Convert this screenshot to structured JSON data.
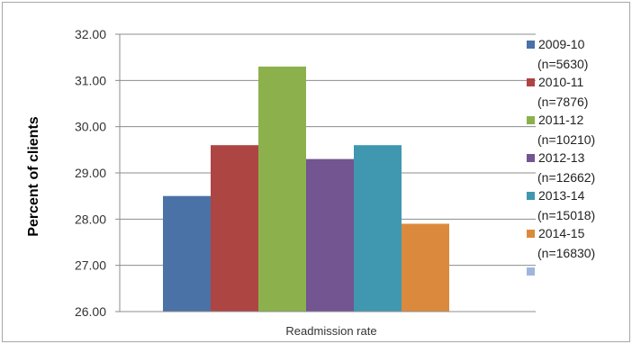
{
  "chart_data": {
    "type": "bar",
    "title": "",
    "xlabel": "Readmission rate",
    "ylabel": "Percent of clients",
    "ylim": [
      26.0,
      32.0
    ],
    "yticks": [
      "26.00",
      "27.00",
      "28.00",
      "29.00",
      "30.00",
      "31.00",
      "32.00"
    ],
    "categories": [
      "Readmission rate"
    ],
    "grid": true,
    "legend_position": "right",
    "series": [
      {
        "name": "2009-10 (n=5630)",
        "legend_lines": [
          "2009-10",
          "(n=5630)"
        ],
        "values": [
          28.5
        ],
        "color": "#4a72a6"
      },
      {
        "name": "2010-11 (n=7876)",
        "legend_lines": [
          "2010-11",
          "(n=7876)"
        ],
        "values": [
          29.6
        ],
        "color": "#ad4543"
      },
      {
        "name": "2011-12 (n=10210)",
        "legend_lines": [
          "2011-12",
          "(n=10210)"
        ],
        "values": [
          31.3
        ],
        "color": "#8cb14c"
      },
      {
        "name": "2012-13 (n=12662)",
        "legend_lines": [
          "2012-13",
          "(n=12662)"
        ],
        "values": [
          29.3
        ],
        "color": "#725591"
      },
      {
        "name": "2013-14 (n=15018)",
        "legend_lines": [
          "2013-14",
          "(n=15018)"
        ],
        "values": [
          29.6
        ],
        "color": "#3f98b0"
      },
      {
        "name": "2014-15 (n=16830)",
        "legend_lines": [
          "2014-15",
          "(n=16830)"
        ],
        "values": [
          27.9
        ],
        "color": "#db8a3d"
      }
    ],
    "legend_extra_color": "#9fb6dc"
  }
}
